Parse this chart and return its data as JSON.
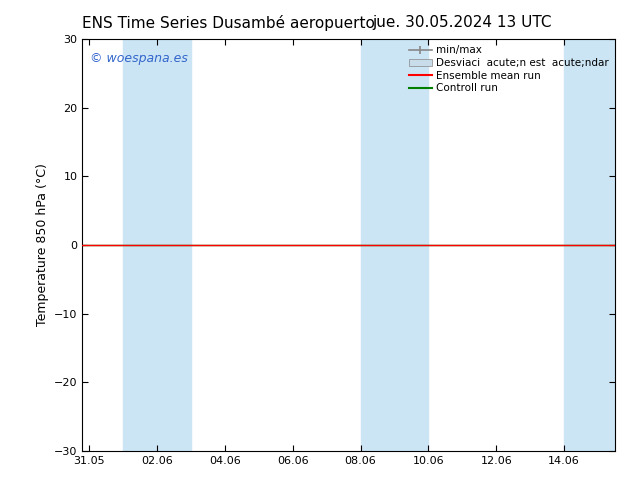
{
  "title_left": "ENS Time Series Dusambé aeropuerto",
  "title_right": "jue. 30.05.2024 13 UTC",
  "ylabel": "Temperature 850 hPa (°C)",
  "ylim": [
    -30,
    30
  ],
  "yticks": [
    -30,
    -20,
    -10,
    0,
    10,
    20,
    30
  ],
  "x_tick_labels": [
    "31.05",
    "02.06",
    "04.06",
    "06.06",
    "08.06",
    "10.06",
    "12.06",
    "14.06"
  ],
  "x_tick_positions": [
    0,
    2,
    4,
    6,
    8,
    10,
    12,
    14
  ],
  "xlim": [
    -0.2,
    15.5
  ],
  "shaded_bands": [
    {
      "x_start": 1.0,
      "x_end": 3.0
    },
    {
      "x_start": 8.0,
      "x_end": 10.0
    },
    {
      "x_start": 14.0,
      "x_end": 15.5
    }
  ],
  "shaded_color": "#cce5f5",
  "ensemble_mean_color": "#ff0000",
  "control_run_color": "#008000",
  "minmax_color": "#888888",
  "spread_color": "#c8dcea",
  "background_color": "#ffffff",
  "watermark_text": "© woespana.es",
  "watermark_color": "#3366cc",
  "legend_entry1": "min/max",
  "legend_entry2": "Desviaci  acute;n est  acute;ndar",
  "legend_entry3": "Ensemble mean run",
  "legend_entry4": "Controll run",
  "title_fontsize": 11,
  "axis_fontsize": 9,
  "tick_fontsize": 8,
  "legend_fontsize": 7.5
}
